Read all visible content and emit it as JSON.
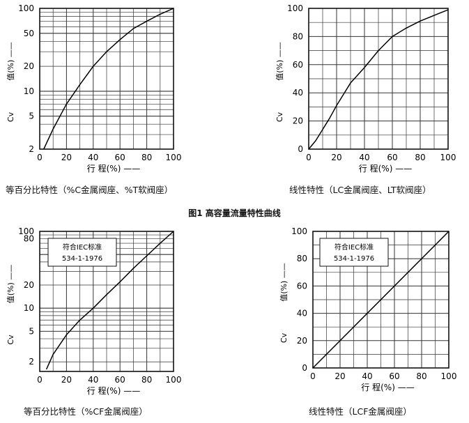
{
  "figure": {
    "caption": "图1 高容量流量特性曲线"
  },
  "common": {
    "ylabel_cv": "Cv",
    "ylabel_value": "值(%) ——",
    "xlabel": "行 程(%) ——"
  },
  "chart_data": [
    {
      "type": "line",
      "scale": "log",
      "title": "等百分比特性（%C金属阀座、%T软阀座）",
      "xlabel": "行 程(%)",
      "ylabel": "Cv 值(%)",
      "xlim": [
        0,
        100
      ],
      "ylim": [
        2,
        100
      ],
      "xticks": [
        "0",
        "20",
        "40",
        "60",
        "80",
        "100"
      ],
      "yticks": [
        {
          "v": 2,
          "label": "2"
        },
        {
          "v": 5,
          "label": "5"
        },
        {
          "v": 10,
          "label": "10"
        },
        {
          "v": 20,
          "label": "20"
        },
        {
          "v": 50,
          "label": "50"
        },
        {
          "v": 100,
          "label": "100"
        }
      ],
      "grid": true,
      "annotation": null,
      "series": [
        {
          "x": [
            3,
            10,
            20,
            30,
            40,
            50,
            60,
            70,
            80,
            90,
            100
          ],
          "y": [
            2,
            3.5,
            7,
            12,
            20,
            30,
            42,
            57,
            70,
            85,
            100
          ]
        }
      ]
    },
    {
      "type": "line",
      "scale": "linear",
      "title": "线性特性（LC金属阀座、LT软阀座）",
      "xlabel": "行 程(%)",
      "ylabel": "Cv 值(%)",
      "xlim": [
        0,
        100
      ],
      "ylim": [
        0,
        100
      ],
      "xticks": [
        "0",
        "20",
        "40",
        "60",
        "80",
        "100"
      ],
      "yticks": [
        {
          "v": 0,
          "label": "0"
        },
        {
          "v": 20,
          "label": "20"
        },
        {
          "v": 40,
          "label": "40"
        },
        {
          "v": 60,
          "label": "60"
        },
        {
          "v": 80,
          "label": "80"
        },
        {
          "v": 100,
          "label": "100"
        }
      ],
      "grid": true,
      "annotation": null,
      "series": [
        {
          "x": [
            0,
            5,
            10,
            15,
            20,
            25,
            30,
            40,
            50,
            60,
            70,
            80,
            90,
            100
          ],
          "y": [
            0,
            6,
            14,
            22,
            31,
            39,
            47,
            58,
            70,
            80,
            86,
            91,
            95,
            99
          ]
        }
      ]
    },
    {
      "type": "line",
      "scale": "log",
      "title": "等百分比特性（%CF金属阀座）",
      "xlabel": "行 程(%)",
      "ylabel": "Cv 值(%)",
      "xlim": [
        0,
        100
      ],
      "ylim": [
        1.5,
        100
      ],
      "xticks": [
        "0",
        "20",
        "40",
        "60",
        "80",
        "100"
      ],
      "yticks": [
        {
          "v": 2,
          "label": "2"
        },
        {
          "v": 5,
          "label": "5"
        },
        {
          "v": 10,
          "label": "10"
        },
        {
          "v": 20,
          "label": "20"
        },
        {
          "v": 80,
          "label": "80"
        },
        {
          "v": 100,
          "label": "100"
        }
      ],
      "grid": true,
      "annotation": [
        "符合IEC标准",
        "534-1-1976"
      ],
      "series": [
        {
          "x": [
            5,
            10,
            20,
            30,
            40,
            50,
            60,
            70,
            80,
            90,
            100
          ],
          "y": [
            1.6,
            2.5,
            4.5,
            7,
            10,
            15,
            22,
            33,
            48,
            70,
            100
          ]
        }
      ]
    },
    {
      "type": "line",
      "scale": "linear",
      "title": "线性特性（LCF金属阀座）",
      "xlabel": "行 程(%)",
      "ylabel": "Cv 值(%)",
      "xlim": [
        0,
        100
      ],
      "ylim": [
        0,
        100
      ],
      "xticks": [
        "0",
        "20",
        "40",
        "60",
        "80",
        "100"
      ],
      "yticks": [
        {
          "v": 0,
          "label": "0"
        },
        {
          "v": 20,
          "label": "20"
        },
        {
          "v": 40,
          "label": "40"
        },
        {
          "v": 60,
          "label": "60"
        },
        {
          "v": 80,
          "label": "80"
        },
        {
          "v": 100,
          "label": "100"
        }
      ],
      "grid": true,
      "annotation": [
        "符合IEC标准",
        "534-1-1976"
      ],
      "series": [
        {
          "x": [
            0,
            100
          ],
          "y": [
            0,
            100
          ]
        }
      ]
    }
  ]
}
